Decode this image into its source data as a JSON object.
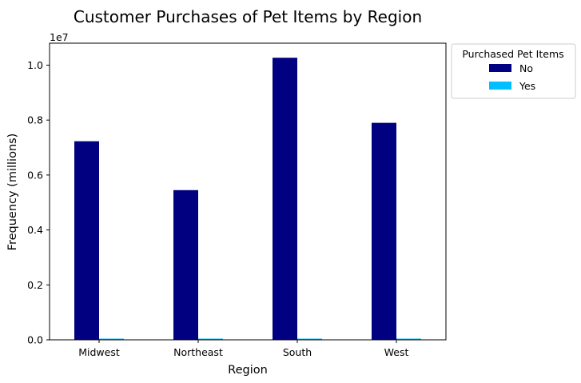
{
  "chart_data": {
    "type": "bar",
    "title": "Customer Purchases of Pet Items by Region",
    "xlabel": "Region",
    "ylabel": "Frequency (millions)",
    "offset_label": "1e7",
    "categories": [
      "Midwest",
      "Northeast",
      "South",
      "West"
    ],
    "series": [
      {
        "name": "No",
        "color": "#000080",
        "values": [
          7230000,
          5450000,
          10270000,
          7900000
        ]
      },
      {
        "name": "Yes",
        "color": "#00bfff",
        "values": [
          12000,
          10000,
          15000,
          12000
        ]
      }
    ],
    "ylim": [
      0,
      10800000
    ],
    "yticks": [
      0,
      2000000,
      4000000,
      6000000,
      8000000,
      10000000
    ],
    "ytick_labels": [
      "0.0",
      "0.2",
      "0.4",
      "0.6",
      "0.8",
      "1.0"
    ],
    "legend": {
      "title": "Purchased Pet Items",
      "placement": "outside-top-right"
    },
    "grid": false
  }
}
